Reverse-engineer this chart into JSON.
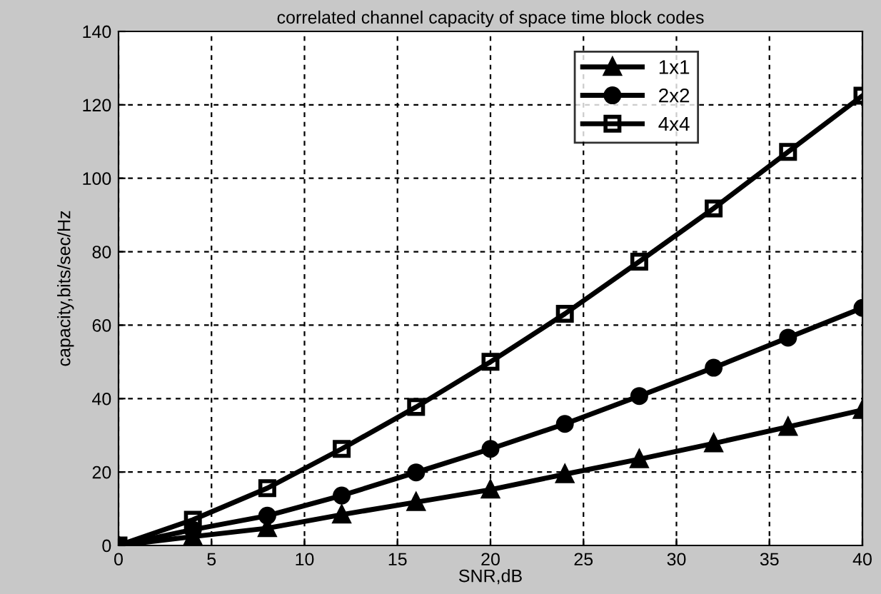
{
  "chart_data": {
    "type": "line",
    "title": "correlated channel capacity of space time block codes",
    "xlabel": "SNR,dB",
    "ylabel": "capacity,bits/sec/Hz",
    "x": [
      0,
      4,
      8,
      12,
      16,
      20,
      24,
      28,
      32,
      36,
      40
    ],
    "series": [
      {
        "name": "1x1",
        "color": "#000000",
        "marker": "triangle",
        "values": [
          0,
          2.4,
          4.7,
          8.4,
          11.8,
          15.2,
          19.4,
          23.5,
          27.8,
          32.3,
          36.9
        ]
      },
      {
        "name": "2x2",
        "color": "#000000",
        "marker": "circle",
        "values": [
          0,
          4.3,
          8.1,
          13.6,
          19.9,
          26.3,
          33.1,
          40.7,
          48.4,
          56.6,
          64.7
        ]
      },
      {
        "name": "4x4",
        "color": "#000000",
        "marker": "square",
        "values": [
          0,
          7,
          15.6,
          26.3,
          37.7,
          50,
          63.1,
          77.3,
          91.8,
          107.2,
          122.5
        ]
      }
    ],
    "xlim": [
      0,
      40
    ],
    "xticks": [
      0,
      5,
      10,
      15,
      20,
      25,
      30,
      35,
      40
    ],
    "ylim": [
      0,
      140
    ],
    "yticks": [
      0,
      20,
      40,
      60,
      80,
      100,
      120,
      140
    ],
    "grid": true,
    "legend": "top right",
    "line_style": "solid"
  }
}
